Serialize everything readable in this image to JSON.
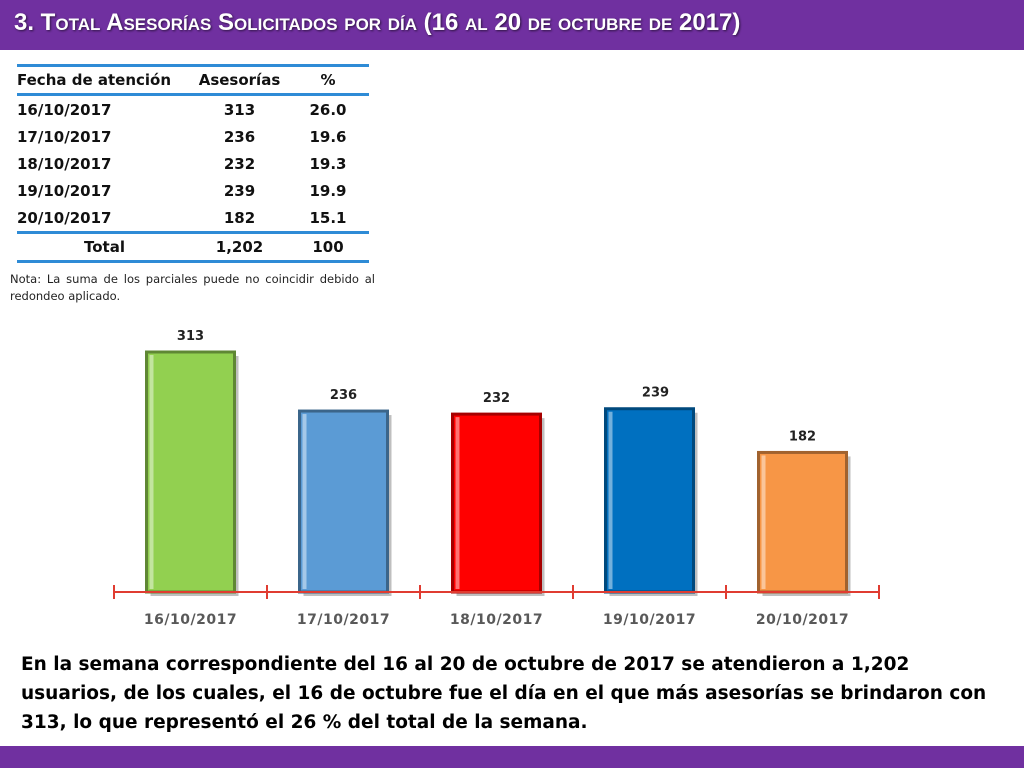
{
  "header": {
    "title": "3.  Total Asesorías Solicitados por día  (16 al 20 de octubre de 2017)"
  },
  "table": {
    "headers": [
      "Fecha de atención",
      "Asesorías",
      "%"
    ],
    "rows": [
      [
        "16/10/2017",
        "313",
        "26.0"
      ],
      [
        "17/10/2017",
        "236",
        "19.6"
      ],
      [
        "18/10/2017",
        "232",
        "19.3"
      ],
      [
        "19/10/2017",
        "239",
        "19.9"
      ],
      [
        "20/10/2017",
        "182",
        "15.1"
      ]
    ],
    "total": [
      "Total",
      "1,202",
      "100"
    ]
  },
  "note": "Nota: La suma de los parciales puede no coincidir debido al redondeo aplicado.",
  "chart_data": {
    "type": "bar",
    "categories": [
      "16/10/2017",
      "17/10/2017",
      "18/10/2017",
      "19/10/2017",
      "20/10/2017"
    ],
    "values": [
      313,
      236,
      232,
      239,
      182
    ],
    "data_labels": [
      "313",
      "236",
      "232",
      "239",
      "182"
    ],
    "colors": [
      "#92d050",
      "#5b9bd5",
      "#ff0000",
      "#0070c0",
      "#f79646"
    ],
    "axis_color": "#e03c31",
    "title": "",
    "xlabel": "",
    "ylabel": "",
    "ylim": [
      0,
      313
    ],
    "grid": false,
    "legend": "none"
  },
  "summary": "En la semana correspondiente del 16 al 20 de octubre de 2017 se atendieron a 1,202 usuarios, de los cuales, el 16 de octubre fue el día en el que más asesorías se brindaron con 313, lo que representó el 26 % del total de la semana.",
  "colors": {
    "header_bg": "#7030a0",
    "table_rule": "#2e8bd6"
  }
}
